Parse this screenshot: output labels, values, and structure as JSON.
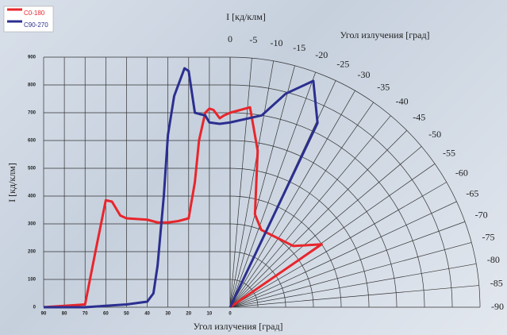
{
  "chart_data": {
    "type": "photometric",
    "top_label": "I   [кд/клм]",
    "polar_label": "Угол излучения     [град]",
    "x_label": "Угол излучения     [град]",
    "y_label": "I   [кд/клм]",
    "xlim": [
      90,
      0
    ],
    "xticks": [
      90,
      80,
      70,
      60,
      50,
      40,
      30,
      20,
      10,
      0
    ],
    "ylim": [
      0,
      900
    ],
    "yticks": [
      0,
      100,
      200,
      300,
      400,
      500,
      600,
      700,
      800,
      900
    ],
    "polar_ticks": [
      0,
      -5,
      -10,
      -15,
      -20,
      -25,
      -30,
      -35,
      -40,
      -45,
      -50,
      -55,
      -60,
      -65,
      -70,
      -75,
      -80,
      -85,
      -90
    ],
    "grid": true,
    "series": [
      {
        "name": "C0-180",
        "color": "#e8262c",
        "x": [
          90,
          70,
          65,
          60,
          57,
          53,
          50,
          40,
          35,
          30,
          25,
          20,
          17,
          15,
          12,
          10,
          8,
          5,
          3,
          0
        ],
        "values": [
          0,
          10,
          200,
          385,
          380,
          330,
          320,
          315,
          305,
          305,
          310,
          320,
          450,
          600,
          700,
          715,
          710,
          680,
          690,
          700
        ],
        "polar_angles": [
          0,
          -5.7,
          -10,
          -15,
          -22,
          -46,
          -55.5,
          -57
        ],
        "polar_values": [
          700,
          723,
          572,
          346,
          300,
          317,
          400,
          0
        ]
      },
      {
        "name": "C90-270",
        "color": "#2b2f8f",
        "x": [
          90,
          70,
          50,
          40,
          37,
          35,
          32,
          30,
          27,
          22,
          20,
          17,
          12,
          10,
          5,
          0
        ],
        "values": [
          0,
          0,
          10,
          20,
          50,
          150,
          400,
          620,
          760,
          860,
          850,
          700,
          690,
          665,
          660,
          665
        ],
        "polar_angles": [
          0,
          -9.4,
          -14.6,
          -20.2,
          -25.4,
          -25.5
        ],
        "polar_values": [
          665,
          700,
          794,
          868,
          734,
          0
        ]
      }
    ]
  }
}
